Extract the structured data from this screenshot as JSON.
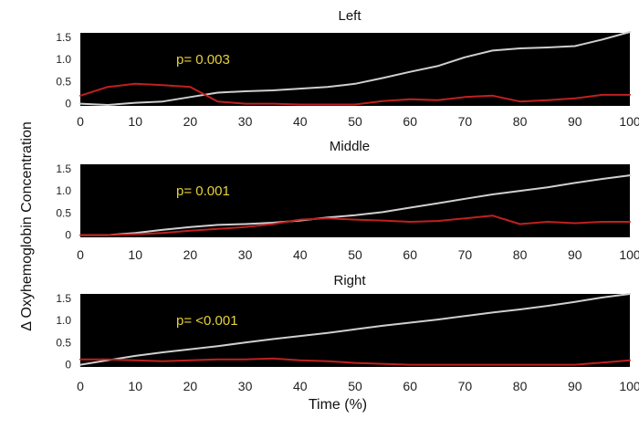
{
  "figure": {
    "ylabel": "Δ Oxyhemoglobin Concentration",
    "xlabel": "Time (%)"
  },
  "colors": {
    "plot_background": "#000000",
    "series_light": "#cfcfcf",
    "series_red": "#c0201f",
    "annotation": "#e6d23a"
  },
  "chart_data": [
    {
      "type": "line",
      "title": "Left",
      "annotation": "p= 0.003",
      "xlim": [
        0,
        100
      ],
      "ylim": [
        -0.05,
        1.6
      ],
      "yticks": [
        "0",
        "0.5",
        "1.0",
        "1.5"
      ],
      "ytick_values": [
        0,
        0.5,
        1.0,
        1.5
      ],
      "xticks": [
        "0",
        "10",
        "20",
        "30",
        "40",
        "50",
        "60",
        "70",
        "80",
        "90",
        "100"
      ],
      "xtick_values": [
        0,
        10,
        20,
        30,
        40,
        50,
        60,
        70,
        80,
        90,
        100
      ],
      "x": [
        0,
        5,
        10,
        15,
        20,
        25,
        30,
        35,
        40,
        45,
        50,
        55,
        60,
        65,
        70,
        75,
        80,
        85,
        90,
        95,
        100
      ],
      "series": [
        {
          "color_key": "series_light",
          "values": [
            0.0,
            -0.03,
            0.02,
            0.05,
            0.15,
            0.25,
            0.28,
            0.3,
            0.34,
            0.38,
            0.45,
            0.58,
            0.72,
            0.85,
            1.05,
            1.2,
            1.25,
            1.27,
            1.3,
            1.45,
            1.62
          ]
        },
        {
          "color_key": "series_red",
          "values": [
            0.18,
            0.38,
            0.45,
            0.42,
            0.38,
            0.05,
            0.0,
            0.0,
            -0.02,
            -0.02,
            -0.02,
            0.06,
            0.1,
            0.08,
            0.15,
            0.18,
            0.05,
            0.08,
            0.12,
            0.2,
            0.2
          ]
        }
      ]
    },
    {
      "type": "line",
      "title": "Middle",
      "annotation": "p= 0.001",
      "xlim": [
        0,
        100
      ],
      "ylim": [
        -0.05,
        1.6
      ],
      "yticks": [
        "0",
        "0.5",
        "1.0",
        "1.5"
      ],
      "ytick_values": [
        0,
        0.5,
        1.0,
        1.5
      ],
      "xticks": [
        "0",
        "10",
        "20",
        "30",
        "40",
        "50",
        "60",
        "70",
        "80",
        "90",
        "100"
      ],
      "xtick_values": [
        0,
        10,
        20,
        30,
        40,
        50,
        60,
        70,
        80,
        90,
        100
      ],
      "x": [
        0,
        5,
        10,
        15,
        20,
        25,
        30,
        35,
        40,
        45,
        50,
        55,
        60,
        65,
        70,
        75,
        80,
        85,
        90,
        95,
        100
      ],
      "series": [
        {
          "color_key": "series_light",
          "values": [
            0.0,
            0.0,
            0.05,
            0.12,
            0.18,
            0.23,
            0.25,
            0.28,
            0.33,
            0.4,
            0.45,
            0.52,
            0.62,
            0.72,
            0.82,
            0.92,
            1.0,
            1.08,
            1.18,
            1.27,
            1.35
          ]
        },
        {
          "color_key": "series_red",
          "values": [
            0.0,
            0.0,
            0.02,
            0.05,
            0.1,
            0.14,
            0.18,
            0.25,
            0.35,
            0.38,
            0.35,
            0.33,
            0.3,
            0.32,
            0.38,
            0.44,
            0.25,
            0.3,
            0.27,
            0.3,
            0.3
          ]
        }
      ]
    },
    {
      "type": "line",
      "title": "Right",
      "annotation": "p= <0.001",
      "xlim": [
        0,
        100
      ],
      "ylim": [
        -0.05,
        1.6
      ],
      "yticks": [
        "0",
        "0.5",
        "1.0",
        "1.5"
      ],
      "ytick_values": [
        0,
        0.5,
        1.0,
        1.5
      ],
      "xticks": [
        "0",
        "10",
        "20",
        "30",
        "40",
        "50",
        "60",
        "70",
        "80",
        "90",
        "100"
      ],
      "xtick_values": [
        0,
        10,
        20,
        30,
        40,
        50,
        60,
        70,
        80,
        90,
        100
      ],
      "x": [
        0,
        5,
        10,
        15,
        20,
        25,
        30,
        35,
        40,
        45,
        50,
        55,
        60,
        65,
        70,
        75,
        80,
        85,
        90,
        95,
        100
      ],
      "series": [
        {
          "color_key": "series_light",
          "values": [
            0.0,
            0.1,
            0.2,
            0.28,
            0.35,
            0.42,
            0.5,
            0.58,
            0.65,
            0.72,
            0.8,
            0.88,
            0.95,
            1.02,
            1.1,
            1.18,
            1.25,
            1.33,
            1.42,
            1.52,
            1.6
          ]
        },
        {
          "color_key": "series_red",
          "values": [
            0.12,
            0.12,
            0.1,
            0.08,
            0.1,
            0.12,
            0.12,
            0.14,
            0.1,
            0.08,
            0.04,
            0.02,
            0.0,
            0.0,
            0.0,
            0.0,
            0.0,
            0.0,
            0.0,
            0.05,
            0.1
          ]
        }
      ]
    }
  ]
}
